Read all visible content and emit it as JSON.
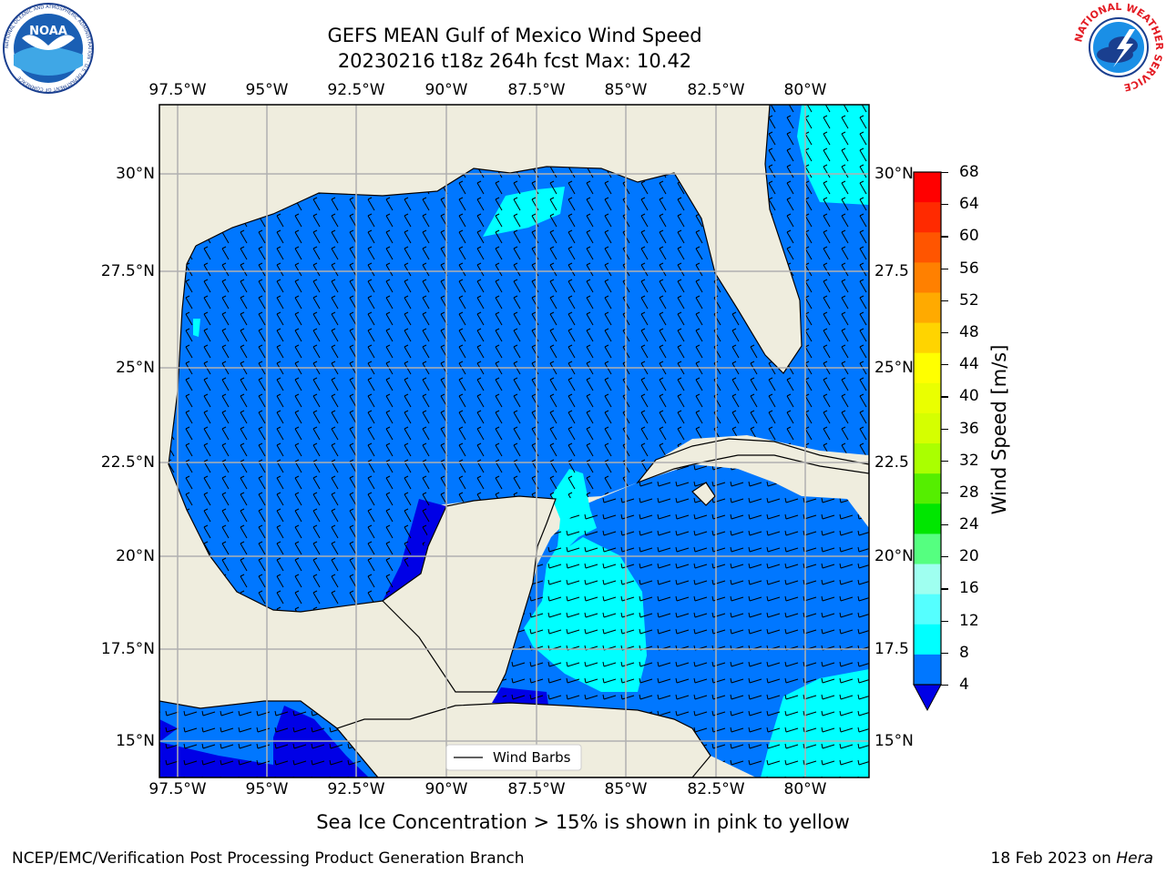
{
  "header": {
    "title_line1": "GEFS MEAN Gulf of Mexico Wind Speed",
    "title_line2": "20230216 t18z 264h fcst   Max: 10.42"
  },
  "logos": {
    "noaa": {
      "text": "NOAA",
      "ring_text": "NATIONAL OCEANIC AND ATMOSPHERIC ADMINISTRATION · U.S. DEPARTMENT OF COMMERCE",
      "icon": "noaa-logo"
    },
    "nws": {
      "ring_text": "NATIONAL WEATHER SERVICE",
      "icon": "nws-logo"
    }
  },
  "map": {
    "lon_labels": [
      "97.5°W",
      "95°W",
      "92.5°W",
      "90°W",
      "87.5°W",
      "85°W",
      "82.5°W",
      "80°W"
    ],
    "lat_labels_left": [
      "30°N",
      "27.5°N",
      "25°N",
      "22.5°N",
      "20°N",
      "17.5°N",
      "15°N"
    ],
    "lat_labels_right": [
      "30°N",
      "27.5",
      "25°N",
      "22.5",
      "20°N",
      "17.5",
      "15°N"
    ],
    "legend_label": "Wind Barbs",
    "colors": {
      "land": "#efedde",
      "ocean_4_8": "#0077ff",
      "ocean_8_12": "#00ffff",
      "ocean_0_4": "#0000e6",
      "grid": "#b0b0b0"
    }
  },
  "colorbar": {
    "label": "Wind Speed [m/s]",
    "ticks": [
      "68",
      "64",
      "60",
      "56",
      "52",
      "48",
      "44",
      "40",
      "36",
      "32",
      "28",
      "24",
      "20",
      "16",
      "12",
      "8",
      "4"
    ],
    "colors": [
      "#ff0000",
      "#ff2a00",
      "#ff5500",
      "#ff8000",
      "#ffaa00",
      "#ffd400",
      "#ffff00",
      "#eaff00",
      "#d5ff00",
      "#aaff00",
      "#55ee00",
      "#00e600",
      "#55ff80",
      "#9ffff0",
      "#55ffff",
      "#00ffff",
      "#0077ff"
    ],
    "extend_color": "#0000e6"
  },
  "subtitle": "Sea Ice Concentration > 15% is shown in pink to yellow",
  "footer": {
    "left": "NCEP/EMC/Verification Post Processing Product Generation Branch",
    "right_prefix": "18 Feb 2023 on ",
    "right_host": "Hera"
  }
}
